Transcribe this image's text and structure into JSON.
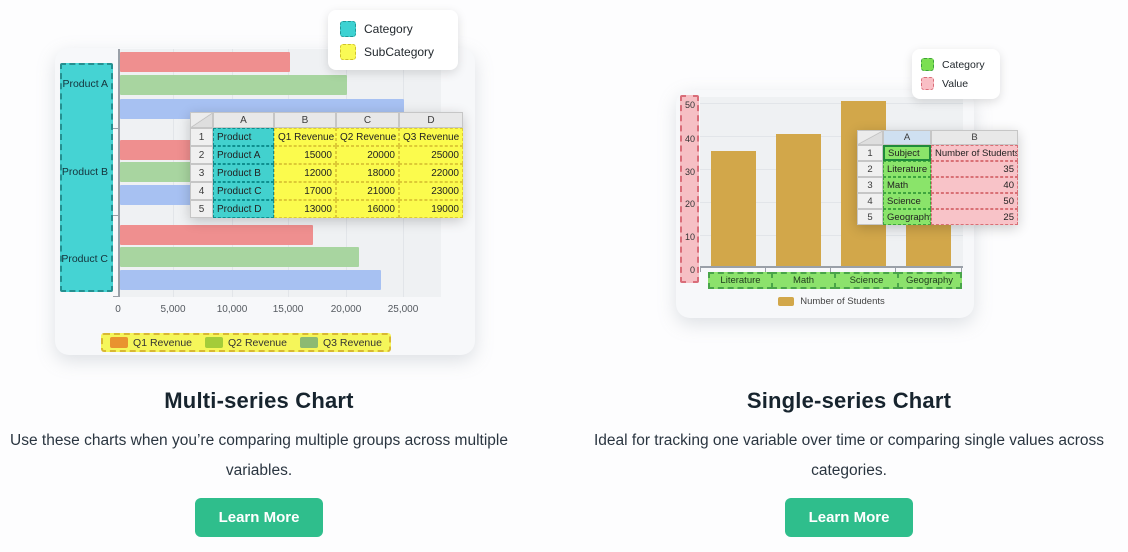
{
  "colors": {
    "accent_button": "#2fbe8c",
    "teal_highlight": "#42d1ce",
    "yellow_highlight": "#fbfb4d",
    "green_highlight": "#8ae46a",
    "pink_highlight": "#f8c3c8",
    "gold_bar": "#d2a74a",
    "bar_red": "#ef8f8f",
    "bar_green": "#a8d5a0",
    "bar_blue": "#a7c1f2",
    "q1_swatch": "#e9932f",
    "q2_swatch": "#a4cc39",
    "q3_swatch": "#8cba72"
  },
  "left": {
    "title": "Multi-series Chart",
    "description": "Use these charts when you’re comparing multiple groups across multiple variables.",
    "button_label": "Learn More",
    "legend_box": {
      "items": [
        {
          "label": "Category"
        },
        {
          "label": "SubCategory"
        }
      ]
    },
    "y_labels": [
      "Product A",
      "Product B",
      "Product C"
    ],
    "x_ticks": [
      "0",
      "5,000",
      "10,000",
      "15,000",
      "20,000",
      "25,000"
    ],
    "series_legend": [
      {
        "label": "Q1 Revenue"
      },
      {
        "label": "Q2 Revenue"
      },
      {
        "label": "Q3 Revenue"
      }
    ],
    "sheet": {
      "col_headers": [
        "A",
        "B",
        "C",
        "D"
      ],
      "row_numbers": [
        "1",
        "2",
        "3",
        "4",
        "5"
      ],
      "rows": [
        [
          "Product",
          "Q1 Revenue",
          "Q2 Revenue",
          "Q3 Revenue"
        ],
        [
          "Product A",
          "15000",
          "20000",
          "25000"
        ],
        [
          "Product B",
          "12000",
          "18000",
          "22000"
        ],
        [
          "Product C",
          "17000",
          "21000",
          "23000"
        ],
        [
          "Product D",
          "13000",
          "16000",
          "19000"
        ]
      ]
    }
  },
  "right": {
    "title": "Single-series Chart",
    "description": "Ideal for tracking one variable over time or comparing single values across categories.",
    "button_label": "Learn More",
    "legend_box": {
      "items": [
        {
          "label": "Category"
        },
        {
          "label": "Value"
        }
      ]
    },
    "x_labels": [
      "Literature",
      "Math",
      "Science",
      "Geography"
    ],
    "y_ticks": [
      "50",
      "40",
      "30",
      "20",
      "10",
      "0"
    ],
    "series_legend": [
      {
        "label": "Number of Students"
      }
    ],
    "sheet": {
      "col_headers": [
        "A",
        "B"
      ],
      "row_numbers": [
        "1",
        "2",
        "3",
        "4",
        "5"
      ],
      "rows": [
        [
          "Subject",
          "Number of Students"
        ],
        [
          "Literature",
          "35"
        ],
        [
          "Math",
          "40"
        ],
        [
          "Science",
          "50"
        ],
        [
          "Geography",
          "25"
        ]
      ]
    }
  },
  "chart_data": [
    {
      "type": "bar",
      "orientation": "horizontal",
      "title": "",
      "categories": [
        "Product A",
        "Product B",
        "Product C"
      ],
      "series": [
        {
          "name": "Q1 Revenue",
          "values": [
            15000,
            12000,
            17000
          ]
        },
        {
          "name": "Q2 Revenue",
          "values": [
            20000,
            18000,
            21000
          ]
        },
        {
          "name": "Q3 Revenue",
          "values": [
            25000,
            22000,
            23000
          ]
        }
      ],
      "xlim": [
        0,
        25000
      ],
      "x_tick_values": [
        0,
        5000,
        10000,
        15000,
        20000,
        25000
      ],
      "grid": true,
      "legend_position": "bottom"
    },
    {
      "type": "bar",
      "orientation": "vertical",
      "title": "",
      "categories": [
        "Literature",
        "Math",
        "Science",
        "Geography"
      ],
      "series": [
        {
          "name": "Number of Students",
          "values": [
            35,
            40,
            50,
            25
          ]
        }
      ],
      "ylim": [
        0,
        50
      ],
      "y_tick_values": [
        0,
        10,
        20,
        30,
        40,
        50
      ],
      "grid": true,
      "legend_position": "bottom"
    }
  ]
}
